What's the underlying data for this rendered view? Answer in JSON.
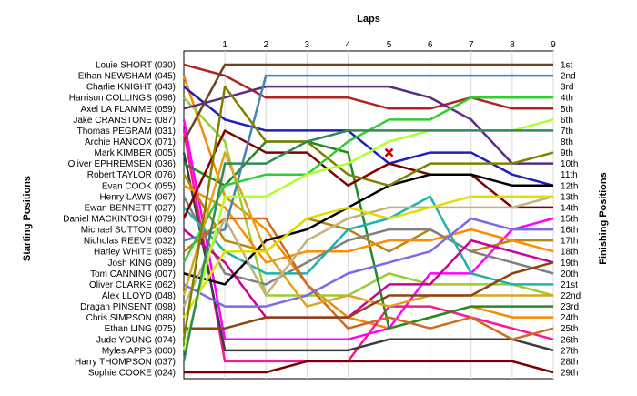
{
  "chart_data": {
    "type": "line",
    "title": "",
    "xlabel": "Laps",
    "ylabel_left": "Starting Positions",
    "ylabel_right": "Finishing Positions",
    "x": [
      0,
      1,
      2,
      3,
      4,
      5,
      6,
      7,
      8,
      9
    ],
    "x_tick_labels": [
      "1",
      "2",
      "3",
      "4",
      "5",
      "6",
      "7",
      "8",
      "9"
    ],
    "ylim": [
      1,
      29
    ],
    "y_inverted": true,
    "grid": "vertical",
    "starting_labels": [
      "Louie SHORT (030)",
      "Ethan NEWSHAM (045)",
      "Charlie KNIGHT (043)",
      "Harrison COLLINGS (096)",
      "Axel LA FLAMME (059)",
      "Jake CRANSTONE (087)",
      "Thomas PEGRAM (031)",
      "Archie HANCOX (071)",
      "Mark KIMBER (005)",
      "Oliver EPHREMSEN (036)",
      "Robert TAYLOR (076)",
      "Evan COOK (055)",
      "Henry LAWS (067)",
      "Ewan BENNETT (027)",
      "Daniel MACKINTOSH (079)",
      "Michael SUTTON (080)",
      "Nicholas REEVE (032)",
      "Harley WHITE (085)",
      "Josh KING (089)",
      "Tom CANNING (007)",
      "Oliver CLARKE (062)",
      "Alex LLOYD (048)",
      "Dragan PINSENT (098)",
      "Chris SIMPSON (088)",
      "Ethan LING (075)",
      "Jude YOUNG (074)",
      "Myles APPS (000)",
      "Harry  THOMPSON (037)",
      "Sophie COOKE (024)"
    ],
    "finishing_labels": [
      "1st",
      "2nd",
      "3rd",
      "4th",
      "5th",
      "6th",
      "7th",
      "8th",
      "9th",
      "10th",
      "11th",
      "12th",
      "13th",
      "14th",
      "15th",
      "16th",
      "17th",
      "18th",
      "19th",
      "20th",
      "21st",
      "22nd",
      "23rd",
      "24th",
      "25th",
      "26th",
      "27th",
      "28th",
      "29th"
    ],
    "markers": [
      {
        "type": "x",
        "x": 5,
        "y": 9,
        "color": "#cc0000"
      }
    ],
    "series": [
      {
        "color": "#b22222",
        "values": [
          1,
          2,
          4,
          4,
          4,
          5,
          5,
          4,
          5,
          5
        ]
      },
      {
        "color": "#f08c00",
        "values": [
          2,
          13,
          16,
          21,
          24,
          25,
          24,
          23,
          24,
          24
        ]
      },
      {
        "color": "#1f1fbf",
        "values": [
          3,
          6,
          7,
          7,
          7,
          10,
          9,
          9,
          11,
          12
        ]
      },
      {
        "color": "#9acd32",
        "values": [
          4,
          8,
          22,
          22,
          22,
          20,
          21,
          21,
          21,
          22
        ]
      },
      {
        "color": "#5a2d82",
        "values": [
          5,
          4,
          3,
          3,
          3,
          3,
          4,
          6,
          10,
          10
        ]
      },
      {
        "color": "#ff00ff",
        "values": [
          6,
          26,
          26,
          26,
          26,
          25,
          20,
          20,
          16,
          15
        ]
      },
      {
        "color": "#ff1493",
        "values": [
          7,
          28,
          28,
          28,
          28,
          23,
          23,
          24,
          25,
          26
        ]
      },
      {
        "color": "#6b4226",
        "values": [
          8,
          1,
          1,
          1,
          1,
          1,
          1,
          1,
          1,
          1
        ]
      },
      {
        "color": "#3c3c3c",
        "values": [
          9,
          27,
          27,
          27,
          27,
          26,
          26,
          26,
          26,
          27
        ]
      },
      {
        "color": "#228b22",
        "values": [
          10,
          12,
          8,
          8,
          9,
          25,
          24,
          23,
          23,
          23
        ]
      },
      {
        "color": "#b8860b",
        "values": [
          11,
          17,
          18,
          15,
          16,
          18,
          16,
          18,
          17,
          17
        ]
      },
      {
        "color": "#ff8c00",
        "values": [
          12,
          14,
          19,
          18,
          18,
          17,
          17,
          16,
          17,
          18
        ]
      },
      {
        "color": "#808080",
        "values": [
          13,
          20,
          21,
          19,
          17,
          16,
          16,
          18,
          19,
          20
        ]
      },
      {
        "color": "#20b2aa",
        "values": [
          14,
          18,
          20,
          20,
          16,
          15,
          13,
          20,
          21,
          21
        ]
      },
      {
        "color": "#800000",
        "values": [
          15,
          7,
          9,
          9,
          12,
          10,
          11,
          11,
          14,
          14
        ]
      },
      {
        "color": "#cc0099",
        "values": [
          16,
          19,
          24,
          24,
          24,
          21,
          21,
          17,
          18,
          19
        ]
      },
      {
        "color": "#4682b4",
        "values": [
          17,
          16,
          2,
          2,
          2,
          2,
          2,
          2,
          2,
          2
        ]
      },
      {
        "color": "#d2691e",
        "values": [
          18,
          15,
          15,
          21,
          25,
          24,
          25,
          24,
          26,
          25
        ]
      },
      {
        "color": "#32cd32",
        "values": [
          19,
          12,
          11,
          11,
          8,
          6,
          6,
          4,
          4,
          4
        ]
      },
      {
        "color": "#000000",
        "values": [
          20,
          21,
          17,
          16,
          14,
          12,
          11,
          11,
          12,
          12
        ]
      },
      {
        "color": "#7b68ee",
        "values": [
          21,
          23,
          23,
          22,
          20,
          19,
          18,
          15,
          16,
          16
        ]
      },
      {
        "color": "#daa520",
        "values": [
          22,
          9,
          18,
          23,
          22,
          23,
          22,
          22,
          22,
          22
        ]
      },
      {
        "color": "#c2b280",
        "values": [
          23,
          15,
          22,
          17,
          15,
          14,
          14,
          14,
          14,
          13
        ]
      },
      {
        "color": "#e0e000",
        "values": [
          24,
          18,
          18,
          15,
          14,
          15,
          14,
          13,
          13,
          13
        ]
      },
      {
        "color": "#8b4513",
        "values": [
          25,
          25,
          24,
          24,
          24,
          22,
          22,
          22,
          20,
          19
        ]
      },
      {
        "color": "#808000",
        "values": [
          26,
          3,
          8,
          8,
          11,
          12,
          10,
          10,
          10,
          9
        ]
      },
      {
        "color": "#adff2f",
        "values": [
          27,
          13,
          13,
          11,
          10,
          8,
          7,
          7,
          7,
          6
        ]
      },
      {
        "color": "#2e8b57",
        "values": [
          28,
          10,
          10,
          8,
          7,
          7,
          7,
          7,
          7,
          7
        ]
      },
      {
        "color": "#7a0000",
        "values": [
          29,
          29,
          29,
          28,
          28,
          28,
          28,
          28,
          28,
          29
        ]
      }
    ]
  }
}
